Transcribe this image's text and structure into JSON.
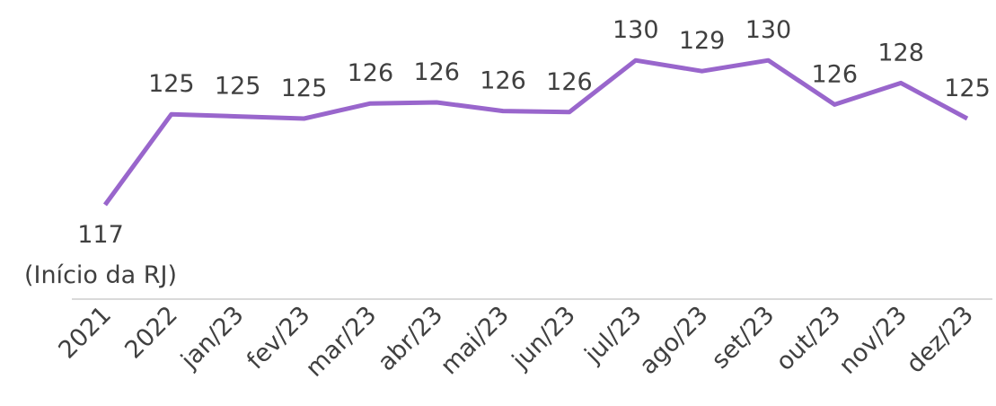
{
  "chart_data": {
    "type": "line",
    "categories": [
      "2021",
      "2022",
      "jan/23",
      "fev/23",
      "mar/23",
      "abr/23",
      "mai/23",
      "jun/23",
      "jul/23",
      "ago/23",
      "set/23",
      "out/23",
      "nov/23",
      "dez/23"
    ],
    "series": [
      {
        "name": "RJ",
        "color": "#9966cc",
        "values": [
          117,
          125.4,
          125.2,
          125.0,
          126.4,
          126.5,
          125.7,
          125.6,
          130.4,
          129.4,
          130.4,
          126.3,
          128.3,
          125.0
        ],
        "value_labels": [
          "117",
          "125",
          "125",
          "125",
          "126",
          "126",
          "126",
          "126",
          "130",
          "129",
          "130",
          "126",
          "128",
          "125"
        ]
      }
    ],
    "annotations": [
      "(Início da RJ)"
    ],
    "ylim": [
      116,
      131
    ]
  }
}
